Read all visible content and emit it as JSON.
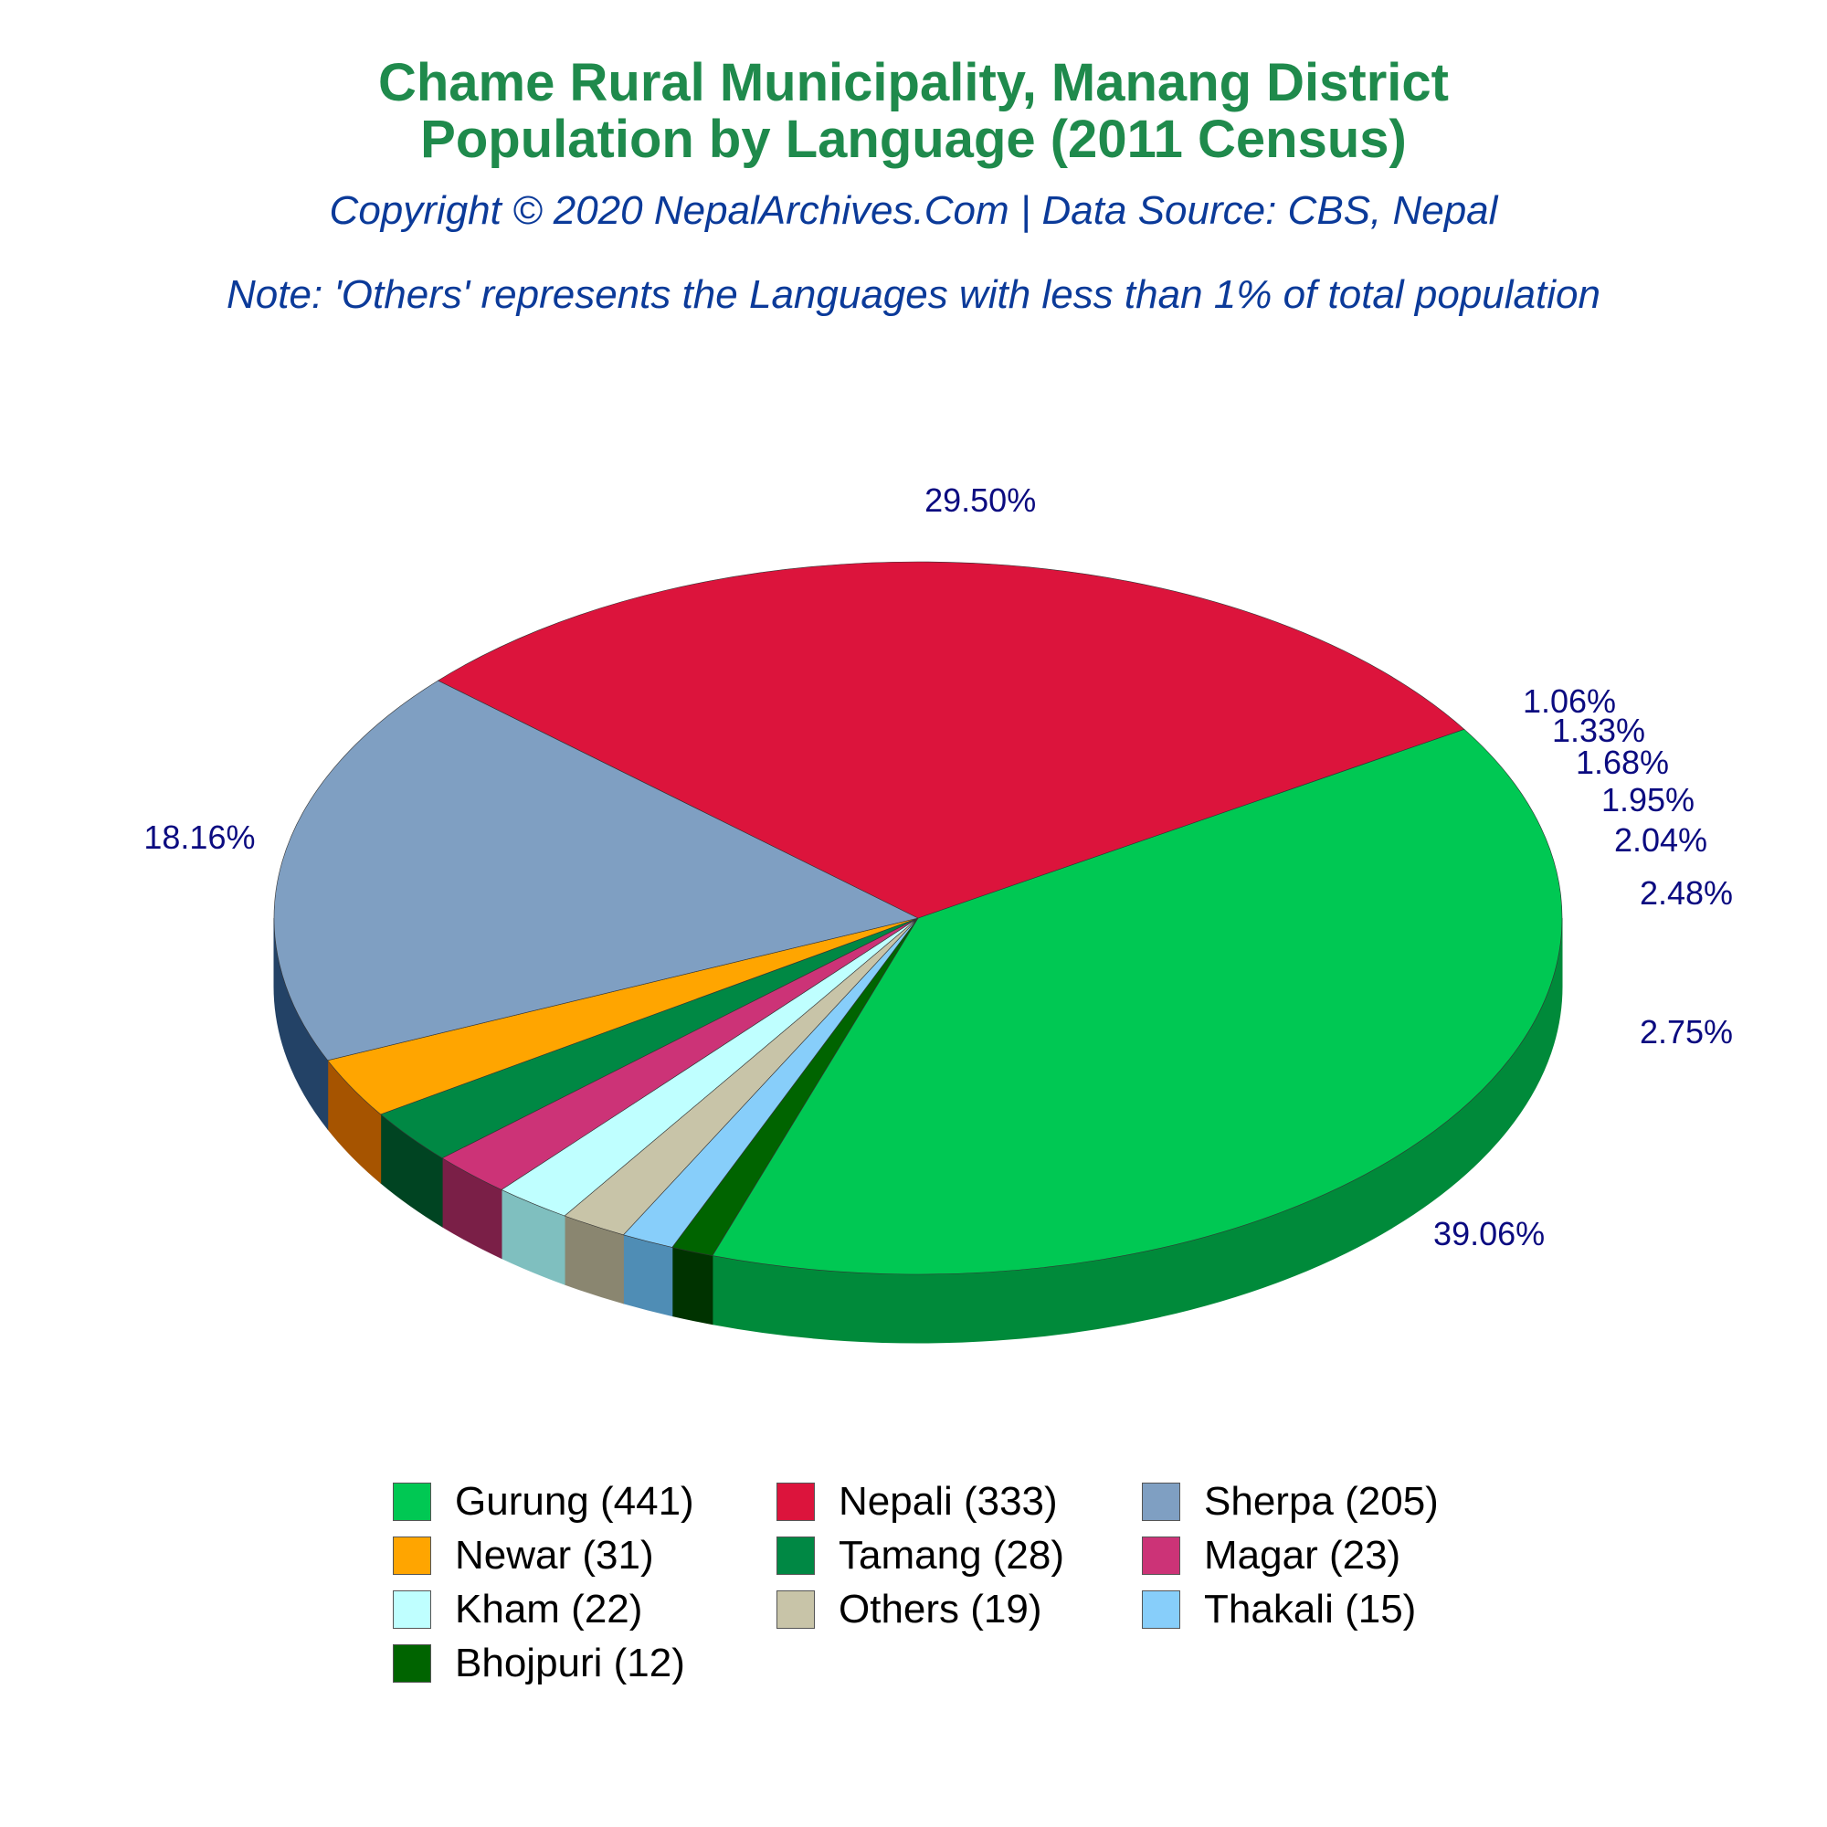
{
  "titles": {
    "line1": "Chame Rural Municipality, Manang District",
    "line2": "Population by Language (2011 Census)",
    "subtitle": "Copyright © 2020 NepalArchives.Com | Data Source: CBS, Nepal",
    "note": "Note: 'Others' represents the Languages with less than 1% of total population"
  },
  "colors": {
    "title": "#1f8a4c",
    "subtitle": "#0b3a99",
    "pct_label": "#0b0b80"
  },
  "chart_data": {
    "type": "pie",
    "style": "3d",
    "legend_position": "bottom",
    "slices": [
      {
        "label": "Gurung (441)",
        "value": 441,
        "pct": "39.06%",
        "color": "#00c853",
        "side": "#008a3a"
      },
      {
        "label": "Bhojpuri (12)",
        "value": 12,
        "pct": "1.06%",
        "color": "#006400",
        "side": "#003300"
      },
      {
        "label": "Thakali (15)",
        "value": 15,
        "pct": "1.33%",
        "color": "#87cefa",
        "side": "#4f8db5"
      },
      {
        "label": "Others (19)",
        "value": 19,
        "pct": "1.68%",
        "color": "#c8c4a8",
        "side": "#8a8670"
      },
      {
        "label": "Kham (22)",
        "value": 22,
        "pct": "1.95%",
        "color": "#bfffff",
        "side": "#7fbfbf"
      },
      {
        "label": "Magar (23)",
        "value": 23,
        "pct": "2.04%",
        "color": "#cc3377",
        "side": "#7a1f47"
      },
      {
        "label": "Tamang (28)",
        "value": 28,
        "pct": "2.48%",
        "color": "#008844",
        "side": "#004422"
      },
      {
        "label": "Newar (31)",
        "value": 31,
        "pct": "2.75%",
        "color": "#ffa500",
        "side": "#a65400"
      },
      {
        "label": "Sherpa (205)",
        "value": 205,
        "pct": "18.16%",
        "color": "#7f9fc2",
        "side": "#234266"
      },
      {
        "label": "Nepali (333)",
        "value": 333,
        "pct": "29.50%",
        "color": "#dc143c",
        "side": "#800000"
      }
    ],
    "legend_order": [
      "Gurung (441)",
      "Nepali (333)",
      "Sherpa (205)",
      "Newar (31)",
      "Tamang (28)",
      "Magar (23)",
      "Kham (22)",
      "Others (19)",
      "Thakali (15)",
      "Bhojpuri (12)"
    ]
  }
}
